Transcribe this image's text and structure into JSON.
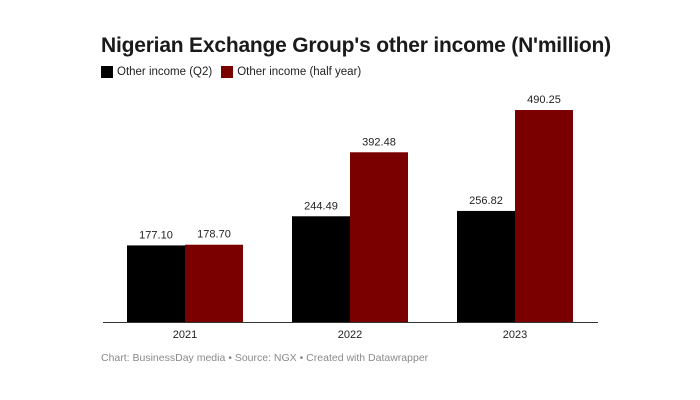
{
  "chart_data": {
    "type": "bar",
    "title": "Nigerian Exchange Group's other income (N'million)",
    "categories": [
      "2021",
      "2022",
      "2023"
    ],
    "series": [
      {
        "name": "Other income (Q2)",
        "color": "#000000",
        "values": [
          177.1,
          244.49,
          256.82
        ],
        "labels": [
          "177.10",
          "244.49",
          "256.82"
        ]
      },
      {
        "name": "Other income (half year)",
        "color": "#7a0000",
        "values": [
          178.7,
          392.48,
          490.25
        ],
        "labels": [
          "178.70",
          "392.48",
          "490.25"
        ]
      }
    ],
    "xlabel": "",
    "ylabel": "",
    "ylim": [
      0,
      490.25
    ],
    "grid": false,
    "legend": "top-left"
  },
  "footer": "Chart: BusinessDay media • Source: NGX • Created with Datawrapper"
}
